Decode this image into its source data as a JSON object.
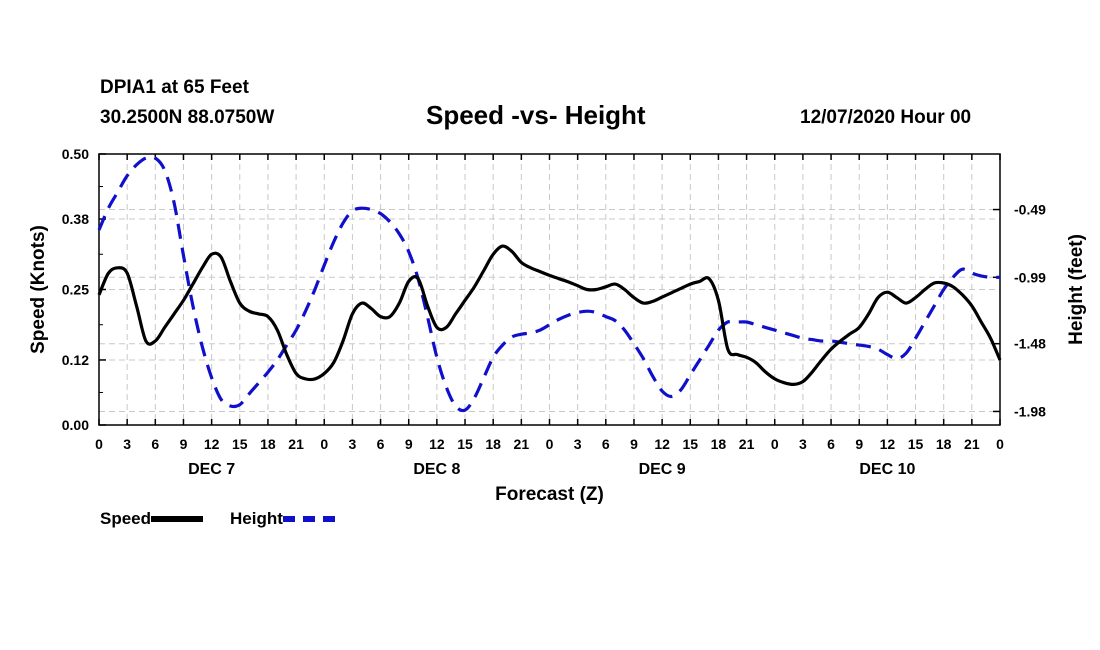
{
  "header": {
    "station": "DPIA1 at 65 Feet",
    "coords": "30.2500N 88.0750W",
    "title": "Speed -vs- Height",
    "datetime": "12/07/2020 Hour 00"
  },
  "legend": {
    "speed_label": "Speed",
    "height_label": "Height"
  },
  "colors": {
    "speed": "#000000",
    "height": "#1010cc",
    "grid": "#c8c8c8"
  },
  "chart_data": {
    "type": "line",
    "title": "Speed -vs- Height",
    "xlabel": "Forecast (Z)",
    "ylabel": "Speed (Knots)",
    "y2label": "Height (feet)",
    "x_range": [
      0,
      96
    ],
    "x_ticks": [
      0,
      3,
      6,
      9,
      12,
      15,
      18,
      21,
      24,
      27,
      30,
      33,
      36,
      39,
      42,
      45,
      48,
      51,
      54,
      57,
      60,
      63,
      66,
      69,
      72,
      75,
      78,
      81,
      84,
      87,
      90,
      93,
      96
    ],
    "x_tick_labels": [
      "0",
      "3",
      "6",
      "9",
      "12",
      "15",
      "18",
      "21",
      "0",
      "3",
      "6",
      "9",
      "12",
      "15",
      "18",
      "21",
      "0",
      "3",
      "6",
      "9",
      "12",
      "15",
      "18",
      "21",
      "0",
      "3",
      "6",
      "9",
      "12",
      "15",
      "18",
      "21",
      "0"
    ],
    "day_labels": [
      {
        "x": 12,
        "label": "DEC 7"
      },
      {
        "x": 36,
        "label": "DEC 8"
      },
      {
        "x": 60,
        "label": "DEC 9"
      },
      {
        "x": 84,
        "label": "DEC 10"
      }
    ],
    "y_left": {
      "range": [
        0,
        0.5
      ],
      "ticks": [
        0.0,
        0.12,
        0.25,
        0.38,
        0.5
      ],
      "tick_labels": [
        "0.00",
        "0.12",
        "0.25",
        "0.38",
        "0.50"
      ]
    },
    "y_right": {
      "range": [
        -2.08,
        -0.08
      ],
      "ticks": [
        -1.98,
        -1.48,
        -0.99,
        -0.49
      ],
      "tick_labels": [
        "-1.98",
        "-1.48",
        "-0.99",
        "-0.49"
      ]
    },
    "legend_position": "bottom-left",
    "series": [
      {
        "name": "Speed",
        "axis": "left",
        "style": "solid",
        "x": [
          0,
          1,
          2,
          3,
          4,
          5,
          6,
          7,
          8,
          9,
          10,
          11,
          12,
          13,
          14,
          15,
          16,
          17,
          18,
          19,
          20,
          21,
          22,
          23,
          24,
          25,
          26,
          27,
          28,
          29,
          30,
          31,
          32,
          33,
          34,
          35,
          36,
          37,
          38,
          39,
          40,
          41,
          42,
          43,
          44,
          45,
          46,
          47,
          48,
          49,
          50,
          51,
          52,
          53,
          54,
          55,
          56,
          57,
          58,
          59,
          60,
          61,
          62,
          63,
          64,
          65,
          66,
          67,
          68,
          69,
          70,
          71,
          72,
          73,
          74,
          75,
          76,
          77,
          78,
          79,
          80,
          81,
          82,
          83,
          84,
          85,
          86,
          87,
          88,
          89,
          90,
          91,
          92,
          93,
          94,
          95,
          96
        ],
        "values": [
          0.24,
          0.28,
          0.29,
          0.28,
          0.22,
          0.155,
          0.155,
          0.18,
          0.205,
          0.23,
          0.26,
          0.29,
          0.315,
          0.31,
          0.265,
          0.225,
          0.21,
          0.205,
          0.2,
          0.175,
          0.13,
          0.095,
          0.085,
          0.085,
          0.095,
          0.115,
          0.155,
          0.205,
          0.225,
          0.215,
          0.2,
          0.2,
          0.225,
          0.265,
          0.27,
          0.22,
          0.18,
          0.18,
          0.205,
          0.23,
          0.255,
          0.285,
          0.315,
          0.33,
          0.32,
          0.3,
          0.29,
          0.283,
          0.276,
          0.27,
          0.264,
          0.257,
          0.25,
          0.25,
          0.255,
          0.26,
          0.25,
          0.235,
          0.225,
          0.228,
          0.236,
          0.244,
          0.252,
          0.26,
          0.265,
          0.27,
          0.23,
          0.14,
          0.13,
          0.125,
          0.115,
          0.098,
          0.085,
          0.078,
          0.075,
          0.08,
          0.098,
          0.12,
          0.14,
          0.155,
          0.168,
          0.18,
          0.205,
          0.235,
          0.245,
          0.235,
          0.225,
          0.235,
          0.25,
          0.262,
          0.262,
          0.255,
          0.24,
          0.22,
          0.19,
          0.16,
          0.12
        ]
      },
      {
        "name": "Height",
        "axis": "right",
        "style": "dashed",
        "x": [
          0,
          1,
          2,
          3,
          4,
          5,
          6,
          7,
          8,
          9,
          10,
          11,
          12,
          13,
          14,
          15,
          16,
          17,
          18,
          19,
          20,
          21,
          22,
          23,
          24,
          25,
          26,
          27,
          28,
          29,
          30,
          31,
          32,
          33,
          34,
          35,
          36,
          37,
          38,
          39,
          40,
          41,
          42,
          43,
          44,
          45,
          46,
          47,
          48,
          49,
          50,
          51,
          52,
          53,
          54,
          55,
          56,
          57,
          58,
          59,
          60,
          61,
          62,
          63,
          64,
          65,
          66,
          67,
          68,
          69,
          70,
          71,
          72,
          73,
          74,
          75,
          76,
          77,
          78,
          79,
          80,
          81,
          82,
          83,
          84,
          85,
          86,
          87,
          88,
          89,
          90,
          91,
          92,
          93,
          94,
          95,
          96
        ],
        "values": [
          -0.64,
          -0.48,
          -0.36,
          -0.24,
          -0.16,
          -0.11,
          -0.11,
          -0.2,
          -0.44,
          -0.83,
          -1.2,
          -1.5,
          -1.73,
          -1.89,
          -1.94,
          -1.93,
          -1.85,
          -1.77,
          -1.69,
          -1.6,
          -1.49,
          -1.38,
          -1.24,
          -1.08,
          -0.9,
          -0.73,
          -0.59,
          -0.5,
          -0.48,
          -0.49,
          -0.52,
          -0.58,
          -0.67,
          -0.8,
          -1.0,
          -1.28,
          -1.58,
          -1.8,
          -1.94,
          -1.97,
          -1.88,
          -1.73,
          -1.58,
          -1.49,
          -1.43,
          -1.41,
          -1.4,
          -1.38,
          -1.34,
          -1.3,
          -1.27,
          -1.25,
          -1.24,
          -1.25,
          -1.28,
          -1.31,
          -1.38,
          -1.48,
          -1.59,
          -1.72,
          -1.83,
          -1.87,
          -1.82,
          -1.71,
          -1.6,
          -1.49,
          -1.38,
          -1.32,
          -1.32,
          -1.32,
          -1.34,
          -1.36,
          -1.38,
          -1.4,
          -1.42,
          -1.44,
          -1.45,
          -1.46,
          -1.46,
          -1.47,
          -1.48,
          -1.49,
          -1.5,
          -1.52,
          -1.56,
          -1.59,
          -1.55,
          -1.44,
          -1.32,
          -1.2,
          -1.08,
          -0.99,
          -0.93,
          -0.96,
          -0.98,
          -0.99,
          -0.99
        ]
      }
    ]
  }
}
